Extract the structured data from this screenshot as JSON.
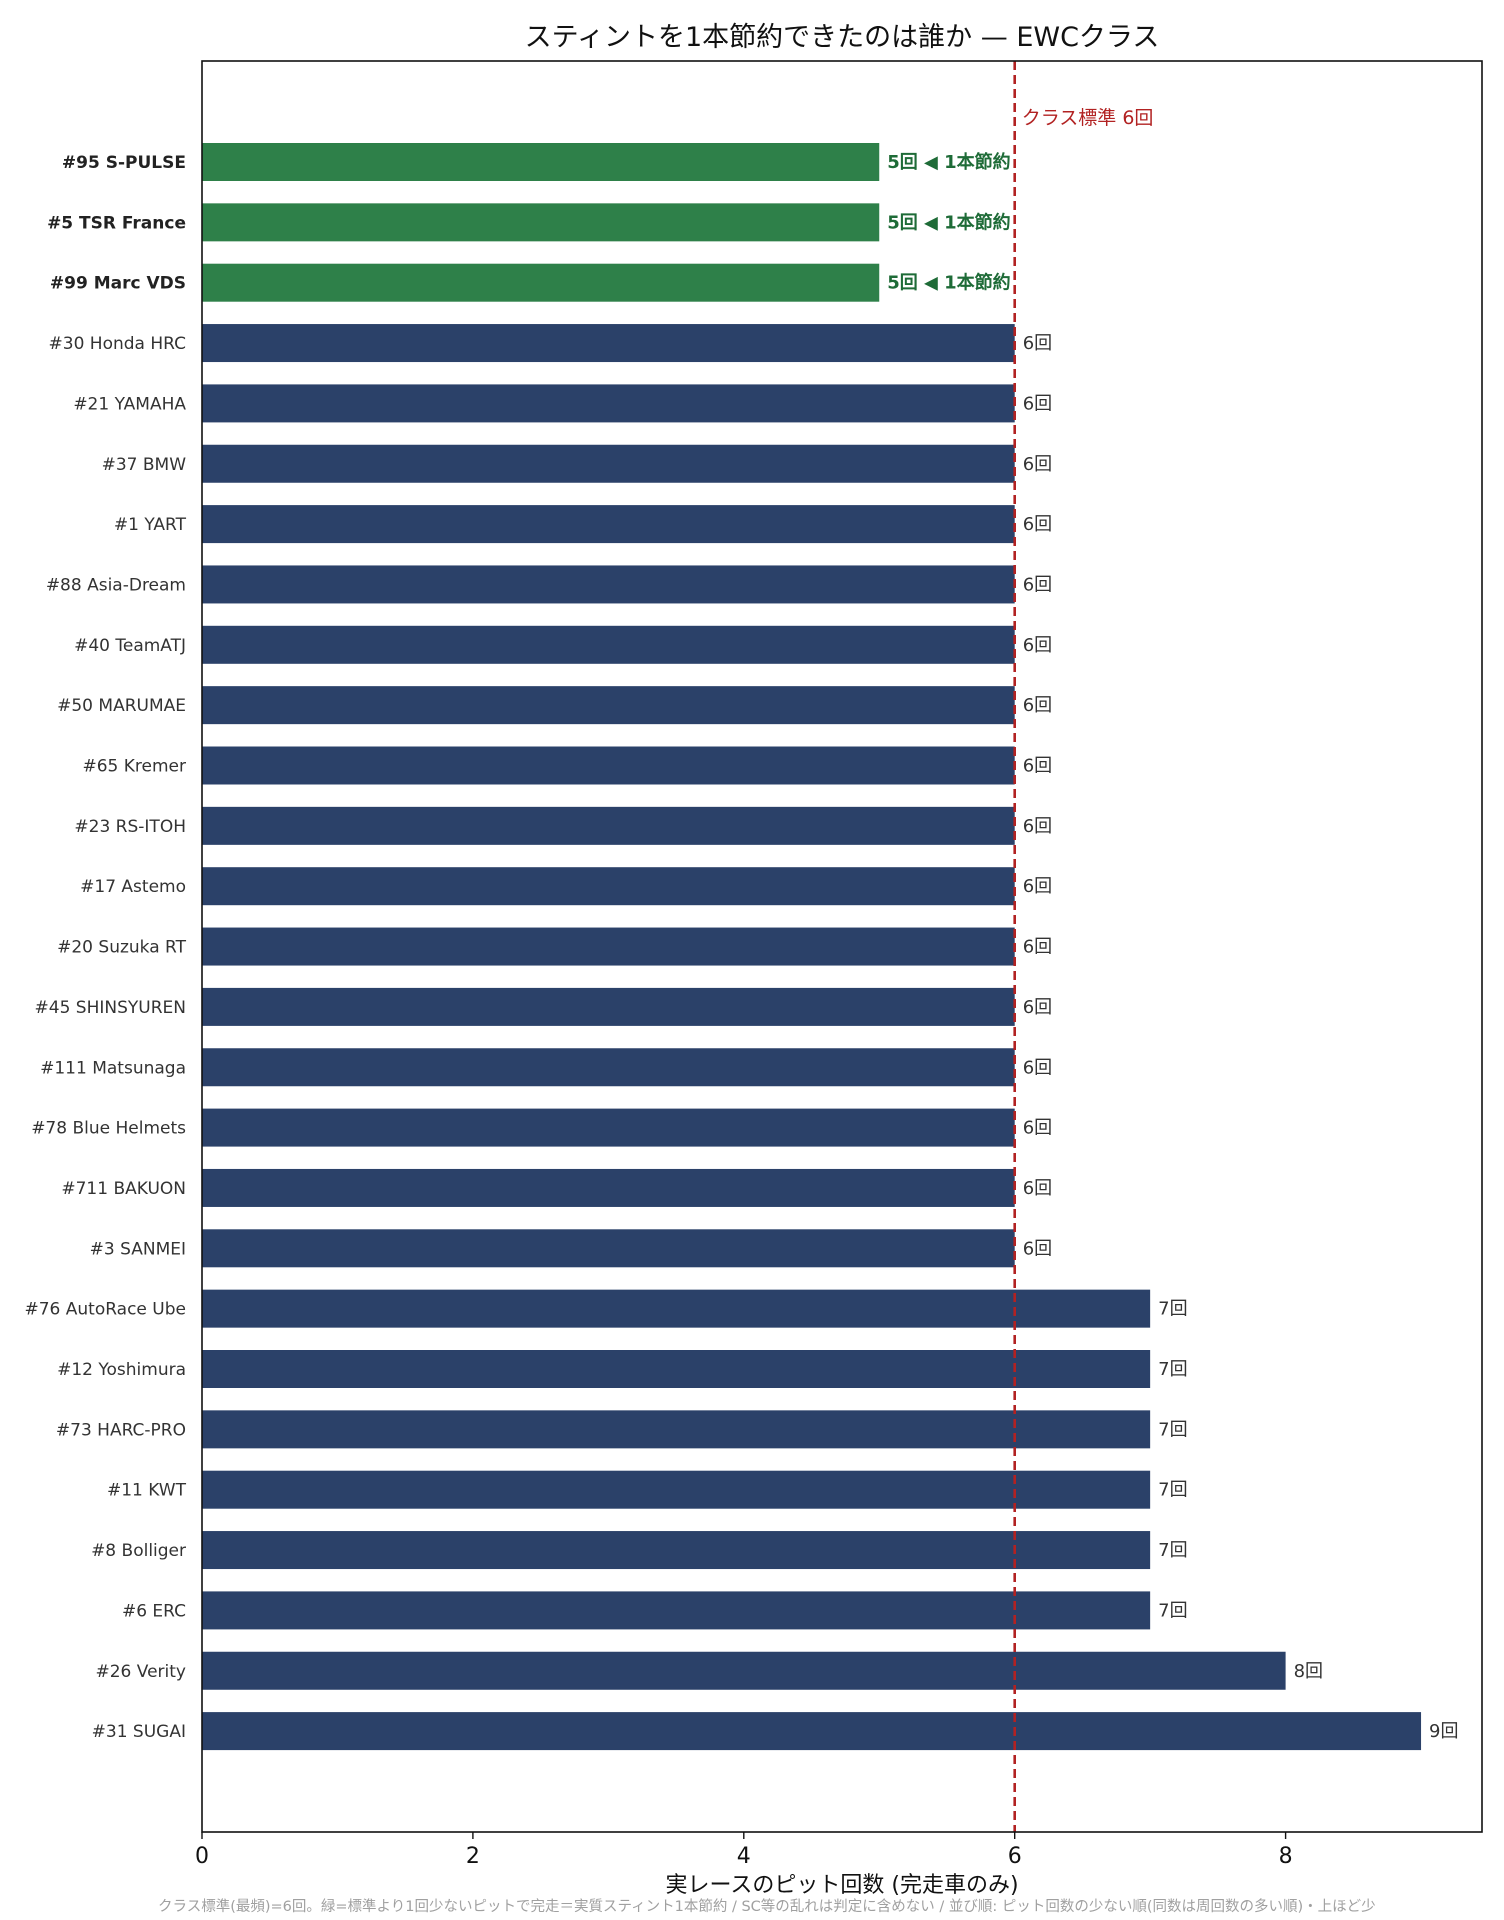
{
  "chart_data": {
    "type": "bar",
    "orientation": "horizontal",
    "title": "スティントを1本節約できたのは誰か — EWCクラス",
    "xlabel": "実レースのピット回数 (完走車のみ)",
    "ylabel": "",
    "xlim": [
      0,
      9.45
    ],
    "xticks": [
      0,
      2,
      4,
      6,
      8
    ],
    "grid": false,
    "unit_suffix": "回",
    "highlight_suffix": " ◀ 1本節約",
    "reference_line": {
      "value": 6,
      "label": "クラス標準 6回",
      "color": "#b22222"
    },
    "footnote": "クラス標準(最頻)=6回。緑=標準より1回少ないピットで完走＝実質スティント1本節約 / SC等の乱れは判定に含めない / 並び順: ピット回数の少ない順(同数は周回数の多い順)・上ほど少",
    "colors": {
      "default": "#2b4169",
      "highlight": "#2e8049",
      "highlight_text": "#1e6b37",
      "reference": "#b22222"
    },
    "categories": [
      "#95 S-PULSE",
      "#5 TSR France",
      "#99 Marc VDS",
      "#30 Honda HRC",
      "#21 YAMAHA",
      "#37 BMW",
      "#1 YART",
      "#88 Asia-Dream",
      "#40 TeamATJ",
      "#50 MARUMAE",
      "#65 Kremer",
      "#23 RS-ITOH",
      "#17 Astemo",
      "#20 Suzuka RT",
      "#45 SHINSYUREN",
      "#111 Matsunaga",
      "#78 Blue Helmets",
      "#711 BAKUON",
      "#3 SANMEI",
      "#76 AutoRace Ube",
      "#12 Yoshimura",
      "#73 HARC-PRO",
      "#11 KWT",
      "#8 Bolliger",
      "#6 ERC",
      "#26 Verity",
      "#31 SUGAI"
    ],
    "values": [
      5,
      5,
      5,
      6,
      6,
      6,
      6,
      6,
      6,
      6,
      6,
      6,
      6,
      6,
      6,
      6,
      6,
      6,
      6,
      7,
      7,
      7,
      7,
      7,
      7,
      8,
      9
    ],
    "highlighted": [
      true,
      true,
      true,
      false,
      false,
      false,
      false,
      false,
      false,
      false,
      false,
      false,
      false,
      false,
      false,
      false,
      false,
      false,
      false,
      false,
      false,
      false,
      false,
      false,
      false,
      false,
      false
    ]
  }
}
